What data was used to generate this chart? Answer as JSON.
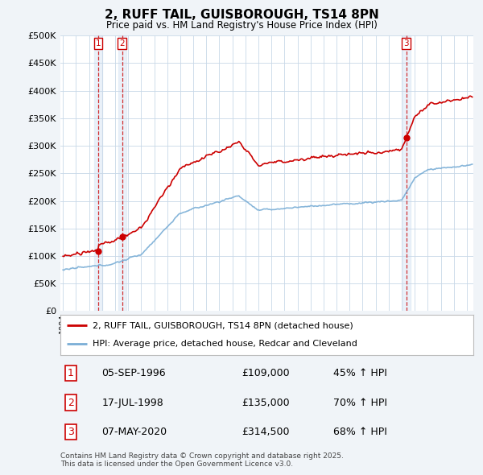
{
  "title": "2, RUFF TAIL, GUISBOROUGH, TS14 8PN",
  "subtitle": "Price paid vs. HM Land Registry's House Price Index (HPI)",
  "property_label": "2, RUFF TAIL, GUISBOROUGH, TS14 8PN (detached house)",
  "hpi_label": "HPI: Average price, detached house, Redcar and Cleveland",
  "transactions": [
    {
      "num": 1,
      "date": "05-SEP-1996",
      "price": 109000,
      "pct": "45% ↑ HPI",
      "year": 1996.7
    },
    {
      "num": 2,
      "date": "17-JUL-1998",
      "price": 135000,
      "pct": "70% ↑ HPI",
      "year": 1998.55
    },
    {
      "num": 3,
      "date": "07-MAY-2020",
      "price": 314500,
      "pct": "68% ↑ HPI",
      "year": 2020.35
    }
  ],
  "footnote1": "Contains HM Land Registry data © Crown copyright and database right 2025.",
  "footnote2": "This data is licensed under the Open Government Licence v3.0.",
  "property_color": "#cc0000",
  "hpi_color": "#7aaed6",
  "background_color": "#f0f4f8",
  "plot_bg_color": "#ffffff",
  "grid_color": "#c8d8e8",
  "shade_color": "#dce8f5",
  "ylim": [
    0,
    500000
  ],
  "yticks": [
    0,
    50000,
    100000,
    150000,
    200000,
    250000,
    300000,
    350000,
    400000,
    450000,
    500000
  ],
  "xmin": 1993.8,
  "xmax": 2025.5
}
